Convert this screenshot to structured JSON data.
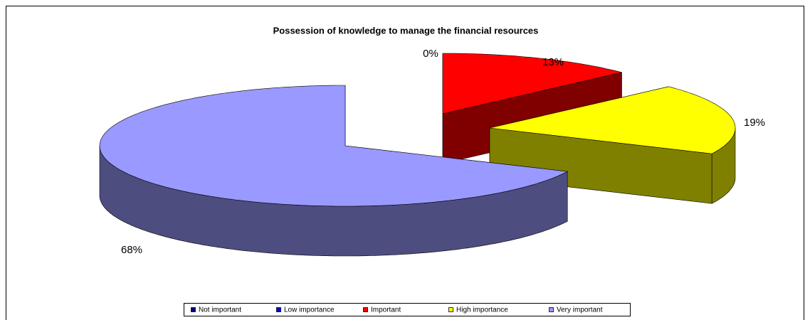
{
  "chart_data": {
    "type": "pie",
    "title": "Possession of knowledge to manage the financial resources",
    "categories": [
      "Not important",
      "Low importance",
      "Important",
      "High importance",
      "Very important"
    ],
    "values": [
      0,
      0,
      13,
      19,
      68
    ],
    "value_labels": [
      "0%",
      null,
      "13%",
      "19%",
      "68%"
    ],
    "colors": [
      "#000080",
      "#0000ff",
      "#ff0000",
      "#ffff00",
      "#9999ff"
    ],
    "legend": "bottom"
  }
}
